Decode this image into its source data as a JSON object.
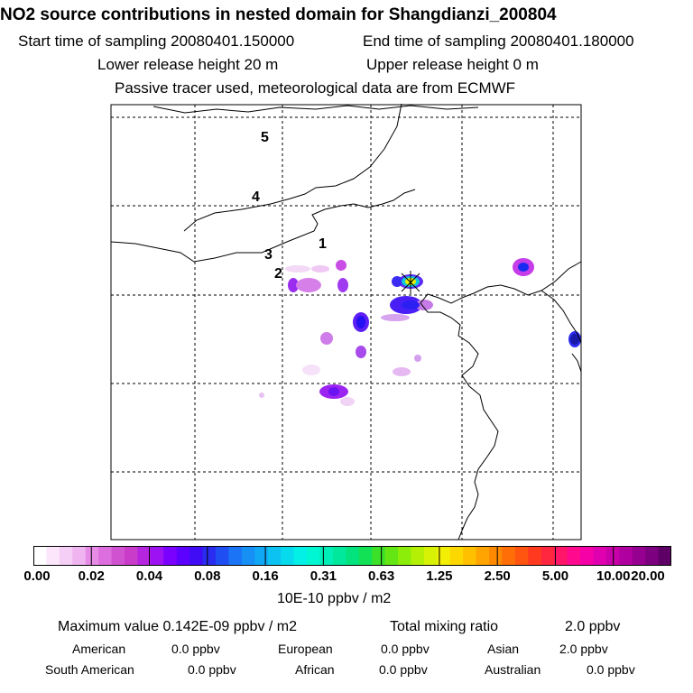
{
  "header": {
    "title": "NO2 source contributions in nested domain for Shangdianzi_200804",
    "start_label": "Start time of sampling 20080401.150000",
    "end_label": "End time of sampling 20080401.180000",
    "lower_release": "Lower release height   20 m",
    "upper_release": "Upper release height    0 m",
    "passive": "Passive tracer used, meteorological data are from ECMWF"
  },
  "chart_data": {
    "type": "heatmap",
    "title": "NO2 source contributions in nested domain for Shangdianzi_200804",
    "units": "10E-10 ppbv / m2",
    "colorbar_ticks": [
      "0.00",
      "0.02",
      "0.04",
      "0.08",
      "0.16",
      "0.31",
      "0.63",
      "1.25",
      "2.50",
      "5.00",
      "10.00",
      "20.00"
    ],
    "colorbar_colors": [
      "#ffffff",
      "#fbe6fb",
      "#f6cff6",
      "#f0b4f0",
      "#e68ce6",
      "#dd6edd",
      "#d152d1",
      "#c93cc9",
      "#b525e0",
      "#9c12f2",
      "#7a00ff",
      "#5c00ff",
      "#3f0cf5",
      "#2a2cf0",
      "#1f4ff2",
      "#1b74f5",
      "#1690f5",
      "#10a8f5",
      "#0cc2f2",
      "#08daee",
      "#03f0e6",
      "#00f7d3",
      "#00eeb8",
      "#00e89c",
      "#02e37e",
      "#12e055",
      "#3be128",
      "#63e613",
      "#8ced0b",
      "#b3f006",
      "#d8f205",
      "#f2ee05",
      "#fcd800",
      "#ffc000",
      "#ffa400",
      "#ff8a00",
      "#ff6e07",
      "#ff5510",
      "#ff3a1e",
      "#ff2640",
      "#ff1668",
      "#ff0a8e",
      "#f600a8",
      "#e000b0",
      "#c900aa",
      "#b0009f",
      "#960090",
      "#7c0080",
      "#5e0066"
    ],
    "max_value": "0.142E-09 ppbv / m2",
    "total_mixing_ratio": "2.0 ppbv",
    "contours_labels": [
      "1",
      "2",
      "3",
      "4",
      "5"
    ],
    "sources": [
      {
        "name": "American",
        "value": "0.0 ppbv"
      },
      {
        "name": "European",
        "value": "0.0 ppbv"
      },
      {
        "name": "Asian",
        "value": "2.0 ppbv"
      },
      {
        "name": "South American",
        "value": "0.0 ppbv"
      },
      {
        "name": "African",
        "value": "0.0 ppbv"
      },
      {
        "name": "Australian",
        "value": "0.0 ppbv"
      }
    ]
  },
  "stats": {
    "max_label": "Maximum value  0.142E-09 ppbv / m2",
    "total_label": "Total mixing ratio",
    "total_value": "2.0 ppbv"
  }
}
